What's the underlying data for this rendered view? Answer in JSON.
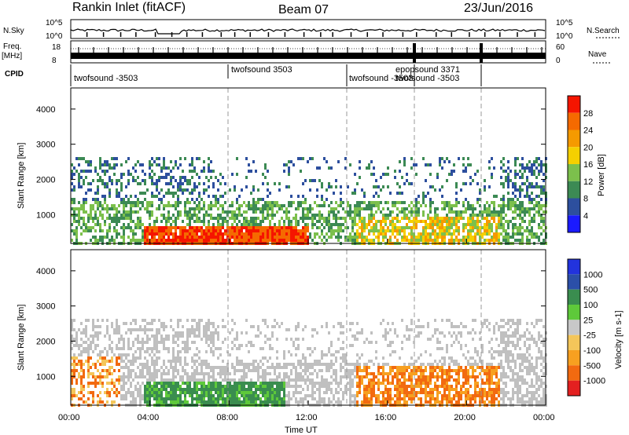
{
  "header": {
    "radar_title": "Rankin Inlet (fitACF)",
    "beam": "Beam 07",
    "date": "23/Jun/2016"
  },
  "panels": {
    "nsky_label": "N.Sky",
    "nsky_ticks": [
      "10^5",
      "10^0"
    ],
    "nsearch_label": "N.Search",
    "nsearch_ticks": [
      "10^5",
      "10^0"
    ],
    "freq_label_1": "Freq.",
    "freq_label_2": "[MHz]",
    "freq_ticks": [
      "18",
      "8"
    ],
    "nave_label": "Nave",
    "nave_ticks": [
      "60",
      "0"
    ],
    "cpid_label": "CPID"
  },
  "cpid_labels": [
    {
      "text": "twofsound -3503"
    },
    {
      "text": "twofsound 3503"
    },
    {
      "text": "twofsound -3503"
    },
    {
      "text": "epopsound 3371"
    },
    {
      "text": "twofsound -3503"
    }
  ],
  "colors": {
    "power_scale": [
      "#1a1aff",
      "#2d4f9e",
      "#3c8a54",
      "#7cc04c",
      "#f5d000",
      "#f59a00",
      "#f56a00",
      "#f51500"
    ],
    "velocity_scale": [
      "#e32020",
      "#f26a10",
      "#f7a020",
      "#f4c65a",
      "#c8c8c8",
      "#5ec93a",
      "#3a8d4f",
      "#2b4fa8",
      "#2233dd"
    ],
    "ground_scatter": "#c0c0c0"
  },
  "chart_data": [
    {
      "type": "heatmap",
      "name": "power",
      "xlabel": "",
      "ylabel": "Slant Range [km]",
      "ylim": [
        180,
        4600
      ],
      "yticks": [
        "1000",
        "2000",
        "3000",
        "4000"
      ],
      "colorbar_label": "Power [dB]",
      "colorbar_ticks": [
        "4",
        "8",
        "12",
        "16",
        "20",
        "24",
        "28"
      ]
    },
    {
      "type": "heatmap",
      "name": "velocity",
      "xlabel": "Time UT",
      "ylabel": "Slant Range [km]",
      "ylim": [
        180,
        4600
      ],
      "yticks": [
        "1000",
        "2000",
        "3000",
        "4000"
      ],
      "xticks": [
        "00:00",
        "04:00",
        "08:00",
        "12:00",
        "16:00",
        "20:00",
        "00:00"
      ],
      "colorbar_label": "Velocity [m s-1]",
      "colorbar_ticks": [
        "1000",
        "500",
        "100",
        "25",
        "-25",
        "-100",
        "-500",
        "-1000"
      ]
    }
  ]
}
